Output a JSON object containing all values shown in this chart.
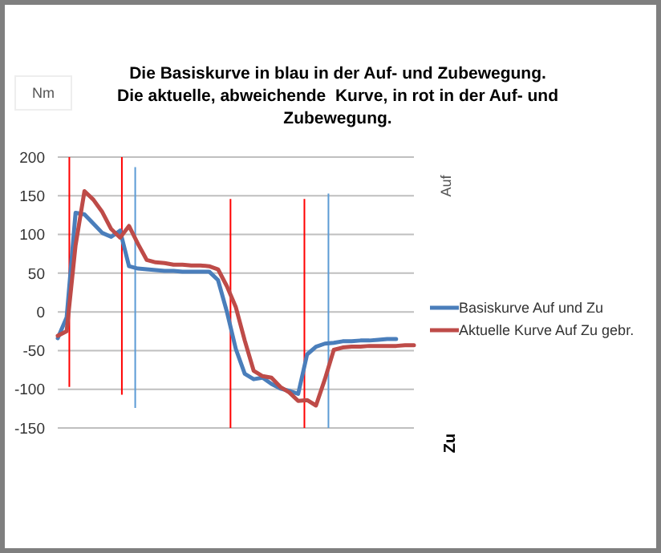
{
  "chart_data": {
    "type": "line",
    "title": "Die Basiskurve in blau in der Auf- und Zubewegung.\nDie aktuelle, abweichende  Kurve, in rot in der Auf- und\nZubewegung.",
    "ylabel": "Nm",
    "annotations": [
      "Auf",
      "Zu"
    ],
    "categories": [
      null,
      null,
      null,
      null,
      null,
      null,
      null,
      null,
      null,
      null,
      null,
      null,
      null,
      null,
      null,
      null,
      null,
      null,
      null,
      null,
      null,
      null,
      null,
      null,
      null,
      null,
      null,
      null,
      null,
      null,
      null,
      null,
      null,
      null,
      null,
      null,
      null,
      null,
      null,
      null,
      null
    ],
    "ylim": [
      -150,
      200
    ],
    "yticks": [
      -150,
      -100,
      -50,
      0,
      50,
      100,
      150,
      200
    ],
    "grid": "y",
    "legend": "right",
    "line_style": "solid",
    "series": [
      {
        "name": "Basiskurve Auf und Zu",
        "color": "#4a7ebb",
        "values": [
          -34,
          -7,
          128,
          126,
          114,
          102,
          97,
          105,
          59,
          56,
          55,
          54,
          53,
          53,
          52,
          52,
          52,
          52,
          41,
          0,
          -48,
          -80,
          -87,
          -85,
          -93,
          -99,
          -102,
          -106,
          -55,
          -45,
          -41,
          -40,
          -38,
          -38,
          -37,
          -37,
          -36,
          -35,
          -35,
          null,
          null
        ]
      },
      {
        "name": "Aktuelle Kurve Auf Zu gebr.",
        "color": "#be4b48",
        "values": [
          -31,
          -25,
          86,
          156,
          145,
          129,
          107,
          96,
          111,
          88,
          67,
          64,
          63,
          61,
          61,
          60,
          60,
          59,
          55,
          33,
          6,
          -37,
          -76,
          -83,
          -85,
          -97,
          -104,
          -115,
          -114,
          -121,
          -87,
          -49,
          -46,
          -45,
          -45,
          -44,
          -44,
          -44,
          -44,
          -43,
          -43
        ]
      }
    ],
    "marker": "none"
  }
}
